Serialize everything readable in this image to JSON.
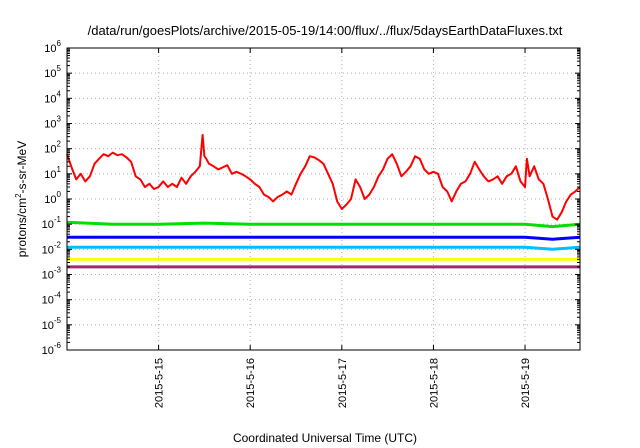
{
  "chart_data": {
    "type": "line",
    "title": "/data/run/goesPlots/archive/2015-05-19/14:00/flux/../flux/5daysEarthDataFluxes.txt",
    "xlabel": "Coordinated Universal Time (UTC)",
    "ylabel": {
      "pre": "protons/cm",
      "sup": "2",
      "post": "-s-sr-MeV"
    },
    "yscale": "log",
    "ylim": [
      1e-06,
      1000000.0
    ],
    "xlim": [
      14.0,
      19.6
    ],
    "grid": true,
    "legend": "none",
    "yticks": [
      {
        "value": 1e-06,
        "base": "10",
        "exp": "-6"
      },
      {
        "value": 1e-05,
        "base": "10",
        "exp": "-5"
      },
      {
        "value": 0.0001,
        "base": "10",
        "exp": "-4"
      },
      {
        "value": 0.001,
        "base": "10",
        "exp": "-3"
      },
      {
        "value": 0.01,
        "base": "10",
        "exp": "-2"
      },
      {
        "value": 0.1,
        "base": "10",
        "exp": "-1"
      },
      {
        "value": 1,
        "base": "10",
        "exp": "0"
      },
      {
        "value": 10,
        "base": "10",
        "exp": "1"
      },
      {
        "value": 100,
        "base": "10",
        "exp": "2"
      },
      {
        "value": 1000,
        "base": "10",
        "exp": "3"
      },
      {
        "value": 10000,
        "base": "10",
        "exp": "4"
      },
      {
        "value": 100000,
        "base": "10",
        "exp": "5"
      },
      {
        "value": 1000000,
        "base": "10",
        "exp": "6"
      }
    ],
    "xticks": [
      {
        "value": 15,
        "label": "2015-5-15"
      },
      {
        "value": 16,
        "label": "2015-5-16"
      },
      {
        "value": 17,
        "label": "2015-5-17"
      },
      {
        "value": 18,
        "label": "2015-5-18"
      },
      {
        "value": 19,
        "label": "2015-5-19"
      }
    ],
    "series": [
      {
        "color": "#ff0000",
        "x": [
          14.0,
          14.05,
          14.1,
          14.15,
          14.2,
          14.25,
          14.3,
          14.35,
          14.4,
          14.45,
          14.5,
          14.55,
          14.6,
          14.65,
          14.7,
          14.75,
          14.8,
          14.85,
          14.9,
          14.95,
          15.0,
          15.05,
          15.1,
          15.15,
          15.2,
          15.25,
          15.3,
          15.35,
          15.4,
          15.45,
          15.48,
          15.5,
          15.52,
          15.55,
          15.6,
          15.65,
          15.7,
          15.75,
          15.8,
          15.85,
          15.9,
          15.95,
          16.0,
          16.05,
          16.1,
          16.15,
          16.2,
          16.25,
          16.3,
          16.35,
          16.4,
          16.45,
          16.5,
          16.55,
          16.6,
          16.65,
          16.7,
          16.75,
          16.8,
          16.85,
          16.9,
          16.95,
          17.0,
          17.05,
          17.1,
          17.15,
          17.2,
          17.25,
          17.3,
          17.35,
          17.4,
          17.45,
          17.5,
          17.55,
          17.6,
          17.65,
          17.7,
          17.75,
          17.8,
          17.85,
          17.9,
          17.95,
          18.0,
          18.05,
          18.1,
          18.15,
          18.2,
          18.25,
          18.3,
          18.35,
          18.4,
          18.45,
          18.5,
          18.55,
          18.6,
          18.65,
          18.7,
          18.75,
          18.8,
          18.85,
          18.9,
          18.95,
          19.0,
          19.02,
          19.05,
          19.1,
          19.15,
          19.2,
          19.25,
          19.3,
          19.35,
          19.4,
          19.45,
          19.5,
          19.55,
          19.6
        ],
        "y": [
          60,
          18,
          6,
          10,
          5,
          8,
          25,
          40,
          60,
          50,
          70,
          55,
          60,
          45,
          30,
          8,
          6,
          3,
          4,
          2.5,
          3,
          5,
          3,
          4,
          3,
          7,
          4,
          8,
          12,
          20,
          350,
          50,
          40,
          25,
          20,
          15,
          18,
          22,
          10,
          12,
          10,
          8,
          6,
          4,
          3,
          1.5,
          1.2,
          0.8,
          1.2,
          1.5,
          2,
          1.5,
          4,
          10,
          20,
          50,
          45,
          35,
          25,
          10,
          4,
          0.8,
          0.4,
          0.6,
          1,
          6,
          3,
          1,
          1.5,
          3,
          8,
          15,
          40,
          60,
          25,
          8,
          12,
          20,
          50,
          40,
          15,
          10,
          12,
          10,
          3,
          2,
          0.8,
          2,
          4,
          5,
          10,
          30,
          15,
          8,
          5,
          6,
          8,
          4,
          8,
          10,
          20,
          5,
          3,
          40,
          8,
          20,
          6,
          4,
          1,
          0.2,
          0.15,
          0.3,
          0.8,
          1.5,
          2,
          3
        ]
      },
      {
        "color": "#00e000",
        "x": [
          14.0,
          14.5,
          15.0,
          15.5,
          16.0,
          16.5,
          17.0,
          17.5,
          18.0,
          18.5,
          19.0,
          19.3,
          19.6
        ],
        "y": [
          0.12,
          0.1,
          0.1,
          0.11,
          0.1,
          0.1,
          0.1,
          0.1,
          0.1,
          0.1,
          0.1,
          0.08,
          0.1
        ]
      },
      {
        "color": "#0000ff",
        "x": [
          14.0,
          14.5,
          15.0,
          15.5,
          16.0,
          16.5,
          17.0,
          17.5,
          18.0,
          18.5,
          19.0,
          19.3,
          19.6
        ],
        "y": [
          0.03,
          0.03,
          0.03,
          0.03,
          0.03,
          0.03,
          0.03,
          0.03,
          0.03,
          0.03,
          0.03,
          0.025,
          0.03
        ]
      },
      {
        "color": "#00bfff",
        "x": [
          14.0,
          14.5,
          15.0,
          15.5,
          16.0,
          16.5,
          17.0,
          17.5,
          18.0,
          18.5,
          19.0,
          19.3,
          19.6
        ],
        "y": [
          0.012,
          0.012,
          0.012,
          0.012,
          0.012,
          0.012,
          0.012,
          0.012,
          0.012,
          0.012,
          0.012,
          0.01,
          0.012
        ]
      },
      {
        "color": "#ffff00",
        "x": [
          14.0,
          14.5,
          15.0,
          15.5,
          16.0,
          16.5,
          17.0,
          17.5,
          18.0,
          18.5,
          19.0,
          19.3,
          19.6
        ],
        "y": [
          0.004,
          0.004,
          0.004,
          0.004,
          0.004,
          0.004,
          0.004,
          0.004,
          0.004,
          0.004,
          0.004,
          0.004,
          0.004
        ]
      },
      {
        "color": "#9b2d6b",
        "x": [
          14.0,
          14.5,
          15.0,
          15.5,
          16.0,
          16.5,
          17.0,
          17.5,
          18.0,
          18.5,
          19.0,
          19.3,
          19.6
        ],
        "y": [
          0.002,
          0.002,
          0.002,
          0.002,
          0.002,
          0.002,
          0.002,
          0.002,
          0.002,
          0.002,
          0.002,
          0.002,
          0.002
        ]
      }
    ]
  }
}
